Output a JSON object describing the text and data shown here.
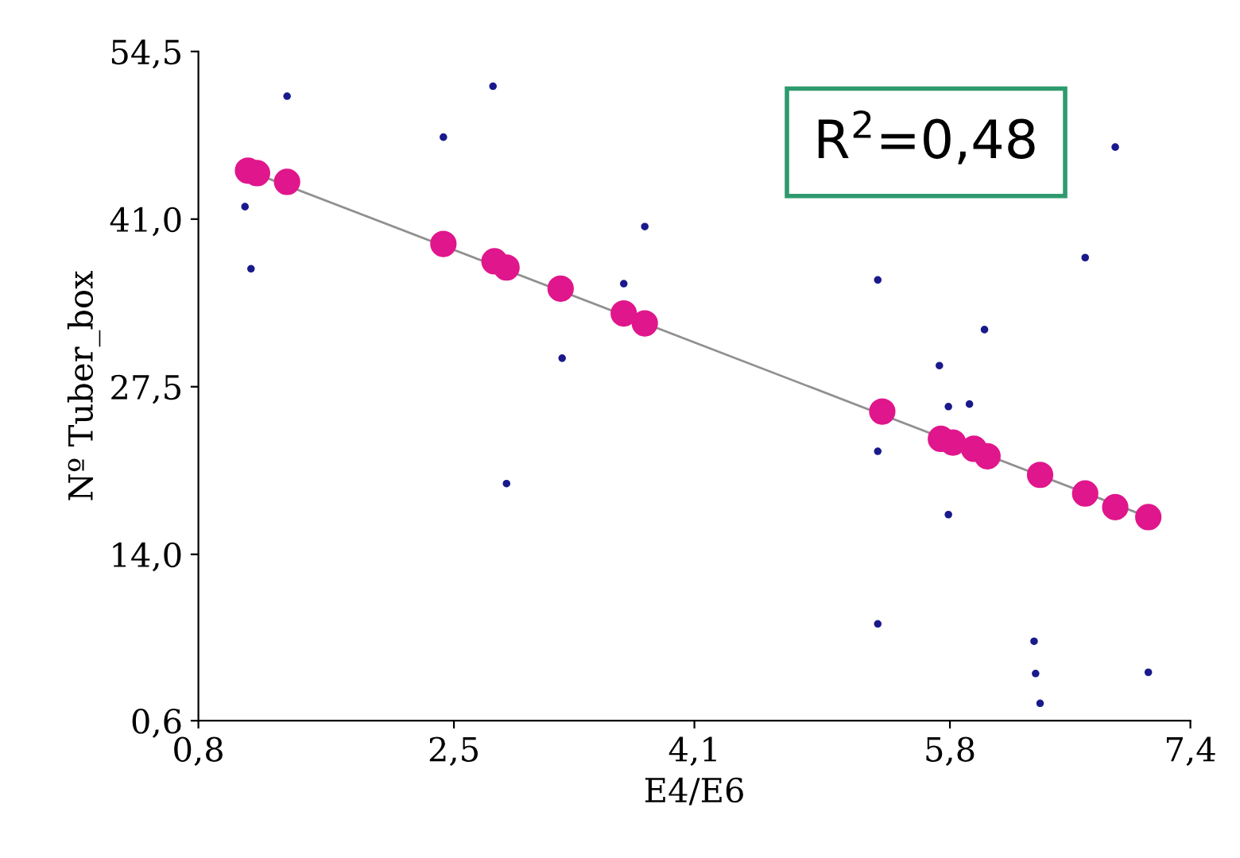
{
  "chart_data": {
    "type": "scatter",
    "xlabel": "E4/E6",
    "ylabel": "Nº Tuber_box",
    "xlim": [
      0.8,
      7.4
    ],
    "ylim": [
      0.6,
      54.5
    ],
    "xticks": [
      {
        "value": 0.8,
        "label": "0,8"
      },
      {
        "value": 2.5,
        "label": "2,5"
      },
      {
        "value": 4.1,
        "label": "4,1"
      },
      {
        "value": 5.8,
        "label": "5,8"
      },
      {
        "value": 7.4,
        "label": "7,4"
      }
    ],
    "yticks": [
      {
        "value": 0.6,
        "label": "0,6"
      },
      {
        "value": 14.0,
        "label": "14,0"
      },
      {
        "value": 27.5,
        "label": "27,5"
      },
      {
        "value": 41.0,
        "label": "41,0"
      },
      {
        "value": 54.5,
        "label": "54,5"
      }
    ],
    "grid": false,
    "legend": false,
    "annotations": [
      "R$^{2}$=0,48"
    ],
    "series": [
      {
        "type": "scatter",
        "color": "#1a1a8c",
        "marker": "circle",
        "x": [
          1.39,
          1.11,
          1.15,
          2.43,
          2.76,
          2.85,
          3.22,
          3.63,
          3.77,
          5.32,
          5.32,
          5.32,
          5.73,
          5.79,
          5.79,
          5.93,
          6.03,
          6.36,
          6.37,
          6.4,
          6.7,
          6.9,
          7.12
        ],
        "values": [
          50.9,
          42.0,
          37.0,
          47.6,
          51.7,
          19.7,
          29.8,
          35.8,
          40.4,
          36.1,
          22.3,
          8.4,
          29.2,
          25.9,
          17.2,
          26.1,
          32.1,
          7.0,
          4.4,
          2.0,
          37.9,
          46.8,
          4.5
        ]
      },
      {
        "type": "line",
        "color": "#909090",
        "marker": "none",
        "line_style": "solid",
        "x": [
          1.13,
          7.12
        ],
        "values": [
          44.9,
          17.0
        ]
      },
      {
        "type": "scatter",
        "color": "#e0168c",
        "marker": "circle",
        "x": [
          1.13,
          1.19,
          1.39,
          2.43,
          2.77,
          2.85,
          3.21,
          3.63,
          3.77,
          5.35,
          5.74,
          5.82,
          5.96,
          6.05,
          6.4,
          6.7,
          6.9,
          7.12
        ],
        "values": [
          44.9,
          44.7,
          44.0,
          39.0,
          37.6,
          37.1,
          35.4,
          33.4,
          32.6,
          25.5,
          23.3,
          23.0,
          22.5,
          21.9,
          20.4,
          18.9,
          17.8,
          17.0
        ]
      }
    ]
  }
}
